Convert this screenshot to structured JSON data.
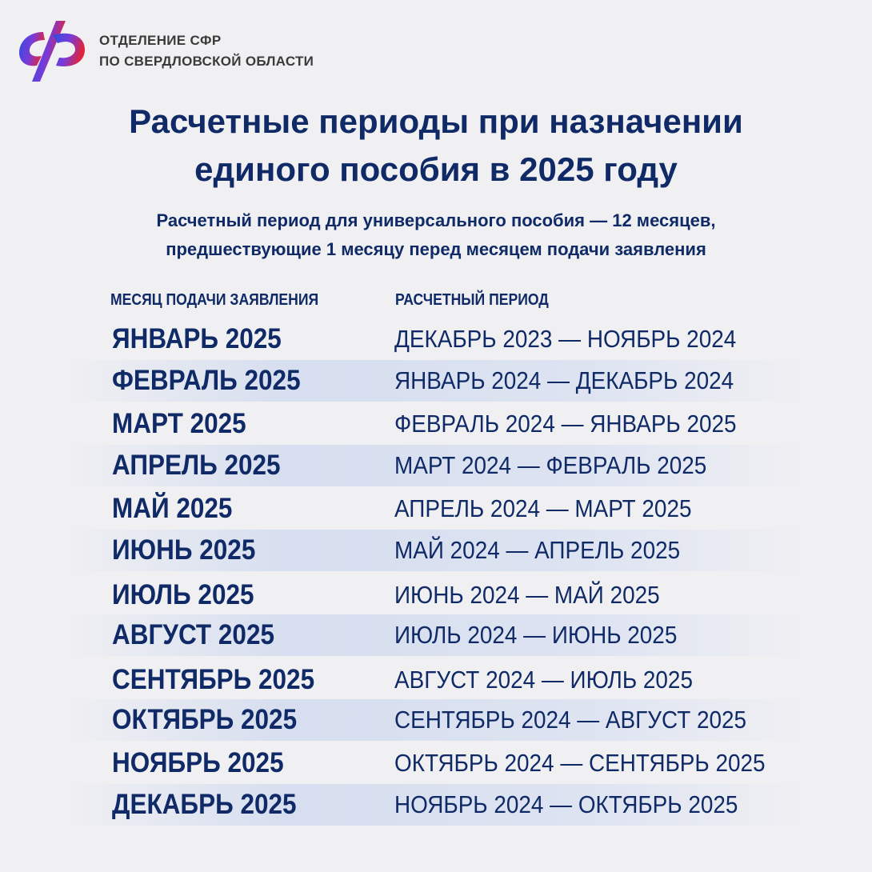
{
  "header": {
    "org_line1": "ОТДЕЛЕНИЕ СФР",
    "org_line2": "ПО СВЕРДЛОВСКОЙ ОБЛАСТИ",
    "logo_icon": "sfr-logo",
    "logo_colors": [
      "#2b4fe0",
      "#e0243a"
    ]
  },
  "title": {
    "line1": "Расчетные периоды при назначении",
    "line2": "единого пособия в 2025 году"
  },
  "subtitle": {
    "line1": "Расчетный период для универсального пособия — 12 месяцев,",
    "line2": "предшествующие 1 месяцу перед месяцем подачи заявления"
  },
  "table": {
    "columns": [
      "МЕСЯЦ ПОДАЧИ ЗАЯВЛЕНИЯ",
      "РАСЧЕТНЫЙ ПЕРИОД"
    ],
    "rows": [
      {
        "month": "ЯНВАРЬ 2025",
        "period": "ДЕКАБРЬ 2023 —  НОЯБРЬ 2024"
      },
      {
        "month": "ФЕВРАЛЬ 2025",
        "period": "ЯНВАРЬ 2024 —  ДЕКАБРЬ 2024"
      },
      {
        "month": "МАРТ 2025",
        "period": "ФЕВРАЛЬ 2024 — ЯНВАРЬ 2025"
      },
      {
        "month": "АПРЕЛЬ 2025",
        "period": "МАРТ 2024 — ФЕВРАЛЬ 2025"
      },
      {
        "month": "МАЙ 2025",
        "period": "АПРЕЛЬ 2024 — МАРТ 2025"
      },
      {
        "month": "ИЮНЬ 2025",
        "period": "МАЙ 2024 — АПРЕЛЬ 2025"
      },
      {
        "month": "ИЮЛЬ 2025",
        "period": "ИЮНЬ 2024 — МАЙ 2025"
      },
      {
        "month": "АВГУСТ 2025",
        "period": "ИЮЛЬ 2024 —  ИЮНЬ 2025"
      },
      {
        "month": "СЕНТЯБРЬ 2025",
        "period": "АВГУСТ 2024 —  ИЮЛЬ 2025"
      },
      {
        "month": "ОКТЯБРЬ 2025",
        "period": "СЕНТЯБРЬ 2024 —  АВГУСТ 2025"
      },
      {
        "month": "НОЯБРЬ 2025",
        "period": "ОКТЯБРЬ 2024 — СЕНТЯБРЬ 2025"
      },
      {
        "month": "ДЕКАБРЬ 2025",
        "period": "НОЯБРЬ 2024 — ОКТЯБРЬ 2025"
      }
    ]
  }
}
